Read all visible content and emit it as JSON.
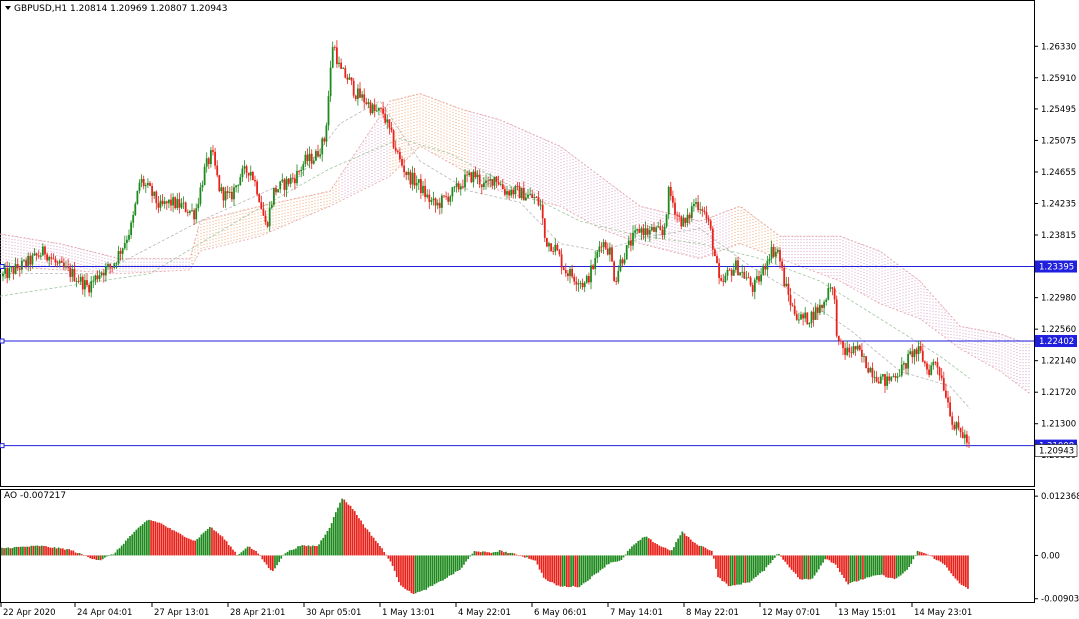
{
  "header": {
    "symbol": "GBPUSD,H1",
    "open": "1.20814",
    "high": "1.20969",
    "low": "1.20807",
    "close": "1.20943",
    "info_text": "GBPUSD,H1  1.20814 1.20969 1.20807 1.20943"
  },
  "colors": {
    "bull": "#1e8a1e",
    "bear": "#e8221a",
    "level_line": "#1f1fdd",
    "cloud_bear": "#f2a673",
    "cloud_bull": "#d7a3c9",
    "ma_line": "#c0c0c0",
    "frame": "#000000"
  },
  "chart_data": {
    "type": "candlestick",
    "symbol": "GBPUSD",
    "timeframe": "H1",
    "ylim": [
      1.2047,
      1.2676
    ],
    "y_ticks": [
      "1.26330",
      "1.25910",
      "1.25495",
      "1.25075",
      "1.24655",
      "1.24235",
      "1.23815",
      "1.22980",
      "1.22560",
      "1.22140",
      "1.21720",
      "1.21300",
      "1.20880"
    ],
    "x_ticks": [
      "22 Apr 2020",
      "24 Apr 04:01",
      "27 Apr 13:01",
      "28 Apr 21:01",
      "30 Apr 05:01",
      "1 May 13:01",
      "4 May 22:01",
      "6 May 06:01",
      "7 May 14:01",
      "8 May 22:01",
      "12 May 07:01",
      "13 May 15:01",
      "14 May 23:01"
    ],
    "horizontal_levels": [
      {
        "value": 1.23395,
        "label": "1.23395"
      },
      {
        "value": 1.22402,
        "label": "1.22402"
      },
      {
        "value": 1.21008,
        "label": "1.21008"
      }
    ],
    "current_price_label": "1.20943",
    "close_path": [
      [
        0,
        1.2325
      ],
      [
        14,
        1.2335
      ],
      [
        28,
        1.2345
      ],
      [
        45,
        1.236
      ],
      [
        58,
        1.234
      ],
      [
        72,
        1.233
      ],
      [
        88,
        1.2312
      ],
      [
        100,
        1.2332
      ],
      [
        112,
        1.234
      ],
      [
        122,
        1.2365
      ],
      [
        132,
        1.2395
      ],
      [
        140,
        1.2455
      ],
      [
        150,
        1.244
      ],
      [
        160,
        1.2418
      ],
      [
        170,
        1.2425
      ],
      [
        182,
        1.242
      ],
      [
        195,
        1.241
      ],
      [
        205,
        1.247
      ],
      [
        212,
        1.249
      ],
      [
        220,
        1.244
      ],
      [
        230,
        1.243
      ],
      [
        240,
        1.246
      ],
      [
        250,
        1.247
      ],
      [
        258,
        1.244
      ],
      [
        266,
        1.2392
      ],
      [
        274,
        1.244
      ],
      [
        285,
        1.245
      ],
      [
        296,
        1.246
      ],
      [
        305,
        1.248
      ],
      [
        315,
        1.2485
      ],
      [
        325,
        1.251
      ],
      [
        333,
        1.264
      ],
      [
        340,
        1.26
      ],
      [
        348,
        1.259
      ],
      [
        356,
        1.257
      ],
      [
        366,
        1.256
      ],
      [
        375,
        1.2545
      ],
      [
        383,
        1.2545
      ],
      [
        392,
        1.251
      ],
      [
        400,
        1.248
      ],
      [
        408,
        1.246
      ],
      [
        418,
        1.245
      ],
      [
        428,
        1.243
      ],
      [
        436,
        1.242
      ],
      [
        445,
        1.243
      ],
      [
        455,
        1.244
      ],
      [
        465,
        1.2455
      ],
      [
        475,
        1.2462
      ],
      [
        485,
        1.2445
      ],
      [
        495,
        1.246
      ],
      [
        505,
        1.244
      ],
      [
        515,
        1.244
      ],
      [
        525,
        1.2435
      ],
      [
        535,
        1.243
      ],
      [
        541,
        1.242
      ],
      [
        545,
        1.2375
      ],
      [
        555,
        1.2365
      ],
      [
        565,
        1.2335
      ],
      [
        575,
        1.2325
      ],
      [
        585,
        1.2315
      ],
      [
        595,
        1.2345
      ],
      [
        601,
        1.2375
      ],
      [
        610,
        1.236
      ],
      [
        615,
        1.232
      ],
      [
        620,
        1.2345
      ],
      [
        630,
        1.237
      ],
      [
        640,
        1.239
      ],
      [
        648,
        1.2385
      ],
      [
        655,
        1.2388
      ],
      [
        663,
        1.238
      ],
      [
        669,
        1.244
      ],
      [
        678,
        1.2405
      ],
      [
        686,
        1.2395
      ],
      [
        694,
        1.2425
      ],
      [
        702,
        1.242
      ],
      [
        710,
        1.239
      ],
      [
        716,
        1.2345
      ],
      [
        720,
        1.231
      ],
      [
        728,
        1.233
      ],
      [
        736,
        1.234
      ],
      [
        746,
        1.2325
      ],
      [
        753,
        1.231
      ],
      [
        762,
        1.233
      ],
      [
        770,
        1.236
      ],
      [
        778,
        1.236
      ],
      [
        784,
        1.232
      ],
      [
        792,
        1.2285
      ],
      [
        800,
        1.227
      ],
      [
        808,
        1.227
      ],
      [
        816,
        1.228
      ],
      [
        824,
        1.229
      ],
      [
        830,
        1.232
      ],
      [
        834,
        1.23
      ],
      [
        838,
        1.2235
      ],
      [
        846,
        1.2225
      ],
      [
        856,
        1.223
      ],
      [
        866,
        1.221
      ],
      [
        876,
        1.2195
      ],
      [
        886,
        1.2185
      ],
      [
        894,
        1.2195
      ],
      [
        904,
        1.2205
      ],
      [
        912,
        1.2225
      ],
      [
        920,
        1.2225
      ],
      [
        928,
        1.22
      ],
      [
        936,
        1.2215
      ],
      [
        942,
        1.219
      ],
      [
        948,
        1.216
      ],
      [
        954,
        1.2125
      ],
      [
        960,
        1.212
      ],
      [
        966,
        1.211
      ],
      [
        970,
        1.2095
      ]
    ],
    "ma_fast_path": [
      [
        0,
        1.233
      ],
      [
        100,
        1.233
      ],
      [
        200,
        1.24
      ],
      [
        300,
        1.246
      ],
      [
        340,
        1.253
      ],
      [
        380,
        1.256
      ],
      [
        420,
        1.248
      ],
      [
        470,
        1.244
      ],
      [
        520,
        1.2425
      ],
      [
        560,
        1.237
      ],
      [
        600,
        1.236
      ],
      [
        650,
        1.238
      ],
      [
        700,
        1.239
      ],
      [
        750,
        1.234
      ],
      [
        800,
        1.23
      ],
      [
        850,
        1.2255
      ],
      [
        900,
        1.22
      ],
      [
        950,
        1.218
      ],
      [
        970,
        1.215
      ]
    ],
    "ma_slow_path": [
      [
        0,
        1.23
      ],
      [
        150,
        1.233
      ],
      [
        250,
        1.241
      ],
      [
        330,
        1.247
      ],
      [
        400,
        1.251
      ],
      [
        450,
        1.249
      ],
      [
        520,
        1.244
      ],
      [
        580,
        1.24
      ],
      [
        640,
        1.238
      ],
      [
        700,
        1.237
      ],
      [
        760,
        1.235
      ],
      [
        820,
        1.232
      ],
      [
        880,
        1.227
      ],
      [
        940,
        1.222
      ],
      [
        970,
        1.219
      ]
    ],
    "cloud_top_path": [
      [
        0,
        1.2383
      ],
      [
        60,
        1.237
      ],
      [
        120,
        1.235
      ],
      [
        190,
        1.235
      ],
      [
        200,
        1.24
      ],
      [
        260,
        1.242
      ],
      [
        330,
        1.244
      ],
      [
        390,
        1.256
      ],
      [
        420,
        1.257
      ],
      [
        460,
        1.255
      ],
      [
        500,
        1.2535
      ],
      [
        560,
        1.25
      ],
      [
        600,
        1.246
      ],
      [
        640,
        1.242
      ],
      [
        700,
        1.24
      ],
      [
        740,
        1.242
      ],
      [
        780,
        1.238
      ],
      [
        840,
        1.238
      ],
      [
        880,
        1.236
      ],
      [
        920,
        1.232
      ],
      [
        960,
        1.226
      ],
      [
        1000,
        1.225
      ],
      [
        1020,
        1.224
      ]
    ],
    "cloud_bottom_path": [
      [
        0,
        1.234
      ],
      [
        60,
        1.2335
      ],
      [
        120,
        1.233
      ],
      [
        190,
        1.2335
      ],
      [
        200,
        1.236
      ],
      [
        260,
        1.238
      ],
      [
        330,
        1.242
      ],
      [
        390,
        1.246
      ],
      [
        420,
        1.25
      ],
      [
        460,
        1.247
      ],
      [
        500,
        1.244
      ],
      [
        560,
        1.242
      ],
      [
        600,
        1.239
      ],
      [
        640,
        1.237
      ],
      [
        700,
        1.235
      ],
      [
        740,
        1.237
      ],
      [
        780,
        1.235
      ],
      [
        840,
        1.232
      ],
      [
        880,
        1.229
      ],
      [
        920,
        1.227
      ],
      [
        960,
        1.223
      ],
      [
        1000,
        1.22
      ],
      [
        1030,
        1.217
      ]
    ],
    "cloud_bear_ranges": [
      [
        190,
        340
      ],
      [
        390,
        470
      ],
      [
        730,
        780
      ]
    ],
    "indicator": {
      "name": "AO",
      "value_label": "-0.007217",
      "info_text": "AO -0.007217",
      "ylim": [
        -0.0093,
        0.0124
      ],
      "y_ticks": [
        "0.012368",
        "0.00",
        "-0.009036"
      ],
      "path": [
        [
          0,
          0.0015
        ],
        [
          40,
          0.002
        ],
        [
          70,
          0.0012
        ],
        [
          90,
          -0.0005
        ],
        [
          100,
          -0.001
        ],
        [
          115,
          0.0005
        ],
        [
          130,
          0.004
        ],
        [
          148,
          0.0075
        ],
        [
          160,
          0.0068
        ],
        [
          175,
          0.005
        ],
        [
          195,
          0.003
        ],
        [
          210,
          0.006
        ],
        [
          222,
          0.004
        ],
        [
          238,
          0.0
        ],
        [
          248,
          0.002
        ],
        [
          258,
          0.0005
        ],
        [
          272,
          -0.0035
        ],
        [
          285,
          0.0005
        ],
        [
          300,
          0.002
        ],
        [
          318,
          0.002
        ],
        [
          330,
          0.006
        ],
        [
          342,
          0.012
        ],
        [
          352,
          0.01
        ],
        [
          365,
          0.006
        ],
        [
          380,
          0.002
        ],
        [
          390,
          -0.001
        ],
        [
          400,
          -0.006
        ],
        [
          412,
          -0.008
        ],
        [
          422,
          -0.0075
        ],
        [
          440,
          -0.0055
        ],
        [
          460,
          -0.003
        ],
        [
          475,
          0.001
        ],
        [
          490,
          0.0005
        ],
        [
          500,
          0.001
        ],
        [
          520,
          0.0
        ],
        [
          535,
          -0.001
        ],
        [
          545,
          -0.005
        ],
        [
          560,
          -0.0065
        ],
        [
          580,
          -0.0065
        ],
        [
          598,
          -0.0035
        ],
        [
          610,
          -0.0015
        ],
        [
          622,
          -0.001
        ],
        [
          630,
          0.0015
        ],
        [
          645,
          0.004
        ],
        [
          660,
          0.002
        ],
        [
          672,
          0.001
        ],
        [
          682,
          0.005
        ],
        [
          695,
          0.0025
        ],
        [
          712,
          0.001
        ],
        [
          718,
          -0.0045
        ],
        [
          730,
          -0.0065
        ],
        [
          750,
          -0.0055
        ],
        [
          765,
          -0.003
        ],
        [
          778,
          0.0005
        ],
        [
          788,
          -0.002
        ],
        [
          800,
          -0.005
        ],
        [
          812,
          -0.005
        ],
        [
          826,
          -0.0005
        ],
        [
          836,
          -0.002
        ],
        [
          848,
          -0.006
        ],
        [
          862,
          -0.005
        ],
        [
          880,
          -0.004
        ],
        [
          895,
          -0.005
        ],
        [
          908,
          -0.003
        ],
        [
          918,
          0.001
        ],
        [
          930,
          0.0
        ],
        [
          945,
          -0.002
        ],
        [
          960,
          -0.006
        ],
        [
          970,
          -0.0072
        ]
      ]
    }
  }
}
